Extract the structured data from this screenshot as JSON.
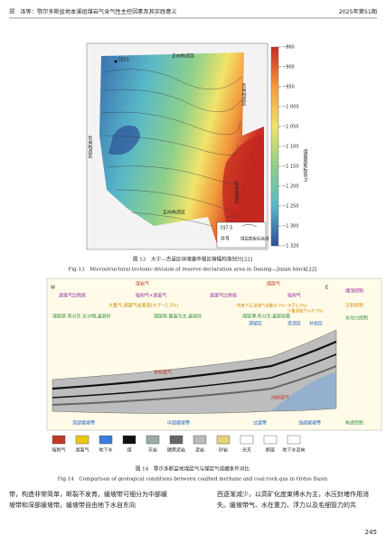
{
  "header": {
    "left": "郑　泽等：鄂尔多斯盆地本溪组煤岩气含气性主控因素及其实践意义",
    "right": "2025年第S1期"
  },
  "figure13": {
    "map_labels": [
      "正向构造区",
      "负向构造区",
      "负向构造区",
      "正向构造区",
      "负向构造区"
    ],
    "wells": [
      "DJ13",
      "DJ7-5"
    ],
    "legend": {
      "well": "井号",
      "contour": "煤层底板标高线"
    },
    "colorbar": {
      "title": "煤层底板标高/m",
      "ticks": [
        "−860",
        "−900",
        "−950",
        "−1 000",
        "−1 050",
        "−1 100",
        "−1 150",
        "−1 200",
        "−1 250",
        "−1 300",
        "−1 320"
      ]
    },
    "caption_cn": "图 13　大宁—吉县区块储量申报区微幅构造划分[22]",
    "caption_en": "Fig.13　Microstructural tectonic division of reserve declaration area in Daning—Jixian block[22]"
  },
  "figure14": {
    "top": [
      "煤岩气",
      "煤层气"
    ],
    "directions": [
      "W",
      "E"
    ],
    "row1": [
      "游离气比例高",
      "吸附气+游离气",
      "游离气比例低",
      "吸附气"
    ],
    "row2": [
      "大量气,游离气含量高(大于~1.3%)",
      "快速下沉,游离气含量(0.7%~大于1.3%)",
      "少量游离气(<0.7%)"
    ],
    "row3": [
      "煤层厚,有分叉,无分隔,盖层好",
      "煤层厚,整装为主,盖层好",
      "煤层薄,有分叉,盖层较差"
    ],
    "water_zones": [
      "滞留区",
      "径流区",
      "补给区"
    ],
    "controls": [
      "埋深控制",
      "沉积控制",
      "水动力控制",
      "构造控制"
    ],
    "section_labels": [
      "背斜富气",
      "向斜富气"
    ],
    "zones": [
      "深部缓坡带",
      "中部缓坡带",
      "过渡带",
      "浅部缓坡带"
    ],
    "legend": [
      "吸附气",
      "游离气",
      "地下水",
      "煤",
      "灰岩",
      "碳质泥岩",
      "泥岩",
      "砂岩",
      "尖灭",
      "断层",
      "地下水流向"
    ],
    "caption_cn": "图 14　鄂尔多斯盆地煤层气与煤岩气成藏条件对比",
    "caption_en": "Fig.14　Comparison of geological conditions between coalbed methane and coal-rock gas in Ordos Basin"
  },
  "body": {
    "left": "带，构造非常简单，断裂不发育。缓坡带可细分为中部缓坡带和深部缓坡带。缓坡带自由地下水自东向",
    "right": "西逐渐减少，以高矿化度束缚水为主，水压封堵作用消失。缓坡带气、水在重力、浮力以及毛细管力的共"
  },
  "page_number": "245"
}
